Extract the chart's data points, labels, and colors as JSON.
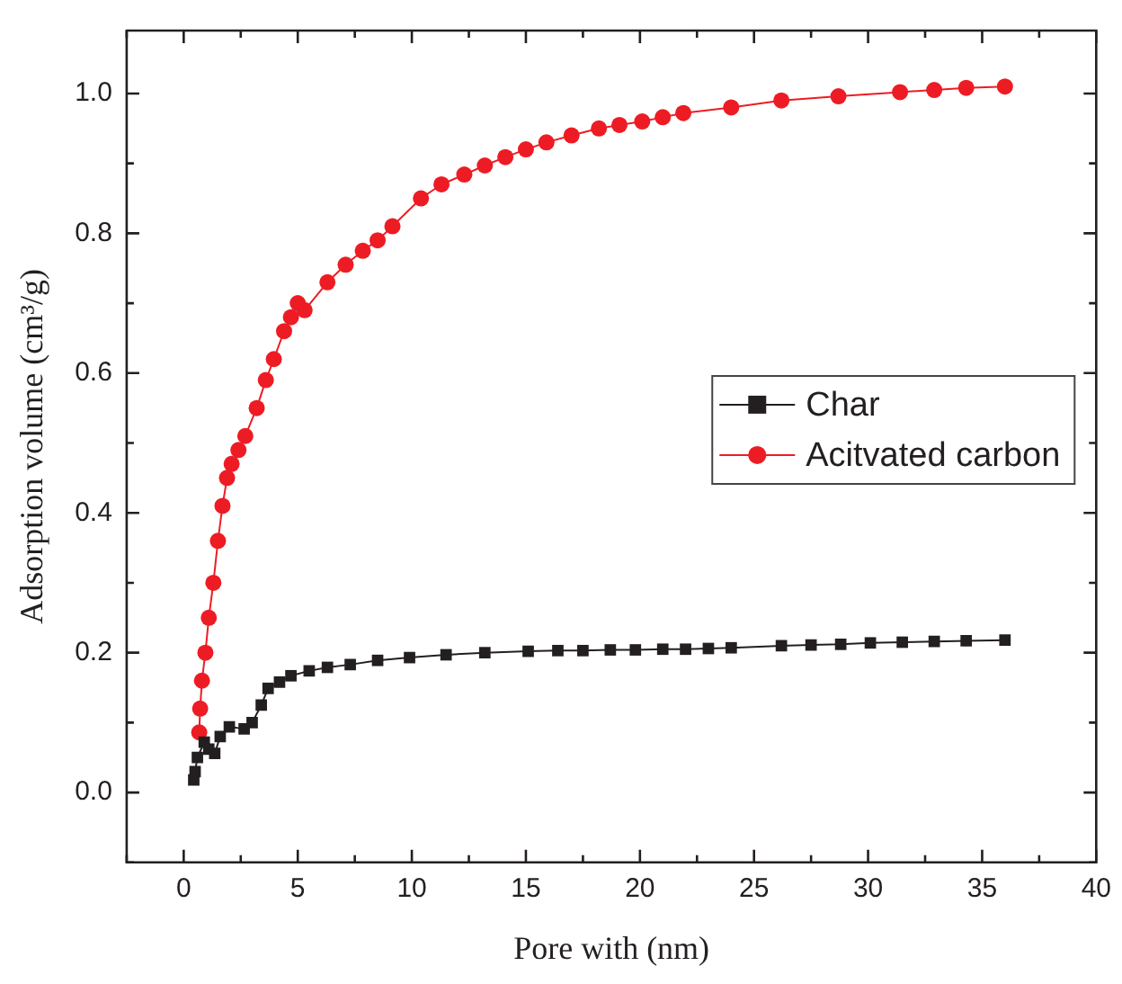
{
  "chart_data": {
    "type": "line",
    "xlabel": "Pore with (nm)",
    "ylabel": "Adsorption volume (cm³/g)",
    "xlim": [
      -2.5,
      40
    ],
    "ylim": [
      -0.1,
      1.09
    ],
    "xticks": [
      {
        "value": -2.5,
        "label": null
      },
      0,
      {
        "value": 2.5,
        "label": null
      },
      5,
      {
        "value": 7.5,
        "label": null
      },
      10,
      {
        "value": 12.5,
        "label": null
      },
      15,
      {
        "value": 17.5,
        "label": null
      },
      20,
      {
        "value": 22.5,
        "label": null
      },
      25,
      {
        "value": 27.5,
        "label": null
      },
      30,
      {
        "value": 32.5,
        "label": null
      },
      35,
      {
        "value": 37.5,
        "label": null
      },
      40
    ],
    "yticks": [
      {
        "value": -0.1,
        "label": null
      },
      {
        "value": 0,
        "label": "0.0"
      },
      {
        "value": 0.1,
        "label": null
      },
      0.2,
      {
        "value": 0.3,
        "label": null
      },
      0.4,
      {
        "value": 0.5,
        "label": null
      },
      0.6,
      {
        "value": 0.7,
        "label": null
      },
      0.8,
      {
        "value": 0.9,
        "label": null
      },
      {
        "value": 1,
        "label": "1.0"
      }
    ],
    "legend": "right",
    "line_style": "solid",
    "series": [
      {
        "name": "Char",
        "color": "#231f20",
        "marker": "square",
        "x": [
          0.44,
          0.5,
          0.6,
          0.9,
          1.1,
          1.36,
          1.6,
          2.0,
          2.65,
          3.0,
          3.4,
          3.7,
          4.2,
          4.7,
          5.5,
          6.3,
          7.3,
          8.5,
          9.9,
          11.5,
          13.2,
          15.1,
          16.4,
          17.5,
          18.7,
          19.8,
          21,
          22,
          23,
          24,
          26.2,
          27.5,
          28.8,
          30.1,
          31.5,
          32.9,
          34.3,
          36
        ],
        "values": [
          0.018,
          0.03,
          0.05,
          0.072,
          0.062,
          0.056,
          0.08,
          0.094,
          0.091,
          0.1,
          0.125,
          0.149,
          0.158,
          0.167,
          0.174,
          0.179,
          0.183,
          0.189,
          0.193,
          0.197,
          0.2,
          0.202,
          0.203,
          0.203,
          0.204,
          0.204,
          0.205,
          0.205,
          0.206,
          0.207,
          0.21,
          0.211,
          0.212,
          0.214,
          0.215,
          0.216,
          0.217,
          0.218
        ]
      },
      {
        "name": "Acitvated carbon",
        "color": "#ed1c24",
        "marker": "circle",
        "x": [
          0.68,
          0.72,
          0.8,
          0.95,
          1.1,
          1.3,
          1.5,
          1.7,
          1.9,
          2.1,
          2.4,
          2.7,
          3.2,
          3.6,
          3.95,
          4.4,
          4.7,
          5.0,
          5.3,
          6.3,
          7.1,
          7.85,
          8.5,
          9.15,
          10.4,
          11.3,
          12.3,
          13.2,
          14.1,
          15.0,
          15.9,
          17.0,
          18.2,
          19.1,
          20.1,
          21.0,
          21.9,
          24.0,
          26.2,
          28.7,
          31.4,
          32.9,
          34.3,
          36
        ],
        "values": [
          0.086,
          0.12,
          0.16,
          0.2,
          0.25,
          0.3,
          0.36,
          0.41,
          0.45,
          0.47,
          0.49,
          0.51,
          0.55,
          0.59,
          0.62,
          0.66,
          0.68,
          0.7,
          0.69,
          0.73,
          0.755,
          0.775,
          0.79,
          0.81,
          0.85,
          0.87,
          0.884,
          0.897,
          0.909,
          0.92,
          0.93,
          0.94,
          0.95,
          0.955,
          0.96,
          0.966,
          0.972,
          0.98,
          0.99,
          0.996,
          1.002,
          1.005,
          1.008,
          1.01
        ]
      }
    ]
  }
}
